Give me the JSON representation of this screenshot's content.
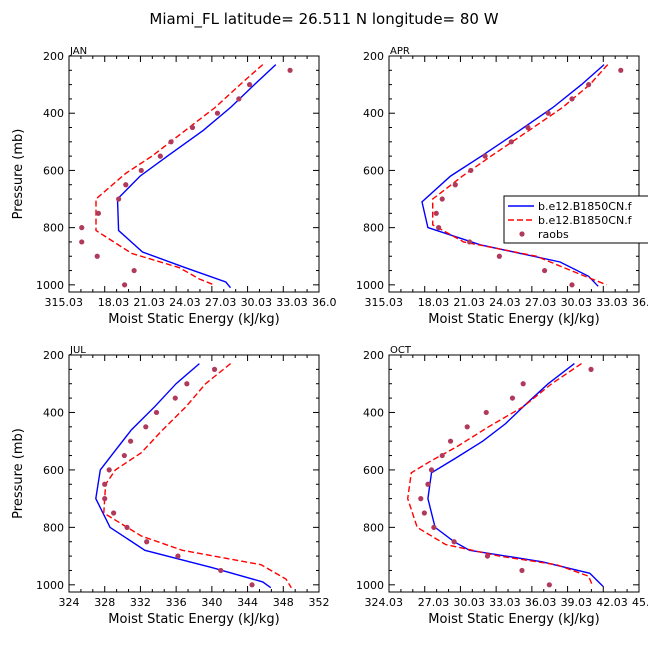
{
  "figure": {
    "title": "Miami_FL  latitude= 26.511 N longitude= 80 W"
  },
  "style": {
    "model1_color": "#0000ff",
    "model2_color": "#ff0000",
    "raobs_color": "#b03a5b"
  },
  "legend": {
    "panel_index": 1,
    "entries": [
      {
        "label": "b.e12.B1850CN.f",
        "style": "solid-line",
        "color": "#0000ff"
      },
      {
        "label": "b.e12.B1850CN.f",
        "style": "dashed-line",
        "color": "#ff0000"
      },
      {
        "label": "raobs",
        "style": "dot",
        "color": "#b03a5b"
      }
    ]
  },
  "chart_data": [
    {
      "type": "line",
      "title": "JAN",
      "xlabel": "Moist Static Energy (kJ/kg)",
      "ylabel": "Pressure (mb)",
      "xlim": [
        315.03,
        336.03
      ],
      "ylim": [
        200,
        1025
      ],
      "y_inverted": true,
      "xticks": [
        315.03,
        318.03,
        321.03,
        324.03,
        327.03,
        330.03,
        333.03,
        336.03
      ],
      "xtick_labels": [
        "315.03",
        "18.03",
        "21.03",
        "24.03",
        "27.03",
        "30.03",
        "33.03",
        "36.0"
      ],
      "yticks": [
        200,
        400,
        600,
        800,
        1000
      ],
      "ytick_labels": [
        "200",
        "400",
        "600",
        "800",
        "1000"
      ],
      "series": [
        {
          "key": "model1",
          "style": "solid",
          "points": [
            [
              332.4,
              230
            ],
            [
              330.6,
              300
            ],
            [
              328.6,
              380
            ],
            [
              326.3,
              460
            ],
            [
              323.3,
              550
            ],
            [
              321.0,
              620
            ],
            [
              319.1,
              700
            ],
            [
              319.2,
              810
            ],
            [
              321.2,
              885
            ],
            [
              324.8,
              940
            ],
            [
              328.2,
              990
            ],
            [
              328.6,
              1010
            ]
          ]
        },
        {
          "key": "model2",
          "style": "dashed",
          "points": [
            [
              331.3,
              230
            ],
            [
              329.4,
              300
            ],
            [
              327.3,
              380
            ],
            [
              324.8,
              460
            ],
            [
              322.0,
              550
            ],
            [
              319.8,
              610
            ],
            [
              317.3,
              700
            ],
            [
              317.3,
              810
            ],
            [
              320.3,
              890
            ],
            [
              324.3,
              940
            ],
            [
              326.0,
              980
            ],
            [
              327.2,
              1000
            ]
          ]
        },
        {
          "key": "raobs",
          "style": "dots",
          "points": [
            [
              333.6,
              250
            ],
            [
              330.2,
              300
            ],
            [
              329.3,
              350
            ],
            [
              327.5,
              400
            ],
            [
              325.4,
              450
            ],
            [
              323.6,
              500
            ],
            [
              322.7,
              550
            ],
            [
              321.1,
              600
            ],
            [
              319.8,
              650
            ],
            [
              319.2,
              700
            ],
            [
              317.5,
              750
            ],
            [
              316.1,
              800
            ],
            [
              316.1,
              850
            ],
            [
              317.4,
              900
            ],
            [
              320.5,
              950
            ],
            [
              319.7,
              1000
            ]
          ]
        }
      ]
    },
    {
      "type": "line",
      "title": "APR",
      "xlabel": "Moist Static Energy (kJ/kg)",
      "ylabel": "",
      "xlim": [
        315.03,
        336.03
      ],
      "ylim": [
        200,
        1025
      ],
      "y_inverted": true,
      "xticks": [
        315.03,
        318.03,
        321.03,
        324.03,
        327.03,
        330.03,
        333.03,
        336.03
      ],
      "xtick_labels": [
        "315.03",
        "18.03",
        "21.03",
        "24.03",
        "27.03",
        "30.03",
        "33.03",
        "36.0"
      ],
      "yticks": [
        200,
        400,
        600,
        800,
        1000
      ],
      "ytick_labels": [
        "200",
        "400",
        "600",
        "800",
        "1000"
      ],
      "series": [
        {
          "key": "model1",
          "style": "solid",
          "points": [
            [
              333.1,
              230
            ],
            [
              331.2,
              300
            ],
            [
              328.8,
              380
            ],
            [
              326.0,
              460
            ],
            [
              322.8,
              550
            ],
            [
              320.2,
              620
            ],
            [
              317.8,
              710
            ],
            [
              318.3,
              800
            ],
            [
              322.7,
              860
            ],
            [
              329.4,
              920
            ],
            [
              331.8,
              970
            ],
            [
              332.6,
              1005
            ]
          ]
        },
        {
          "key": "model2",
          "style": "dashed",
          "points": [
            [
              333.4,
              230
            ],
            [
              331.9,
              300
            ],
            [
              329.6,
              380
            ],
            [
              326.8,
              460
            ],
            [
              323.6,
              550
            ],
            [
              321.2,
              620
            ],
            [
              318.7,
              700
            ],
            [
              318.7,
              790
            ],
            [
              321.3,
              850
            ],
            [
              327.4,
              900
            ],
            [
              330.3,
              950
            ],
            [
              333.3,
              1000
            ]
          ]
        },
        {
          "key": "raobs",
          "style": "dots",
          "points": [
            [
              334.5,
              250
            ],
            [
              331.8,
              300
            ],
            [
              330.4,
              350
            ],
            [
              328.4,
              400
            ],
            [
              326.7,
              450
            ],
            [
              325.3,
              500
            ],
            [
              323.1,
              550
            ],
            [
              321.9,
              600
            ],
            [
              320.6,
              650
            ],
            [
              319.5,
              700
            ],
            [
              319.0,
              750
            ],
            [
              319.2,
              800
            ],
            [
              321.8,
              850
            ],
            [
              324.3,
              900
            ],
            [
              328.1,
              950
            ],
            [
              330.4,
              1000
            ]
          ]
        }
      ]
    },
    {
      "type": "line",
      "title": "JUL",
      "xlabel": "Moist Static Energy (kJ/kg)",
      "ylabel": "Pressure (mb)",
      "xlim": [
        324,
        352
      ],
      "ylim": [
        200,
        1025
      ],
      "y_inverted": true,
      "xticks": [
        324,
        328,
        332,
        336,
        340,
        344,
        348,
        352
      ],
      "xtick_labels": [
        "324",
        "328",
        "332",
        "336",
        "340",
        "344",
        "348",
        "352"
      ],
      "yticks": [
        200,
        400,
        600,
        800,
        1000
      ],
      "ytick_labels": [
        "200",
        "400",
        "600",
        "800",
        "1000"
      ],
      "series": [
        {
          "key": "model1",
          "style": "solid",
          "points": [
            [
              338.6,
              230
            ],
            [
              336.0,
              300
            ],
            [
              333.6,
              380
            ],
            [
              331.0,
              460
            ],
            [
              329.0,
              540
            ],
            [
              327.5,
              600
            ],
            [
              327.0,
              700
            ],
            [
              328.6,
              800
            ],
            [
              332.5,
              880
            ],
            [
              340.0,
              940
            ],
            [
              345.7,
              990
            ],
            [
              346.6,
              1010
            ]
          ]
        },
        {
          "key": "model2",
          "style": "dashed",
          "points": [
            [
              342.1,
              230
            ],
            [
              339.3,
              300
            ],
            [
              337.1,
              380
            ],
            [
              334.5,
              460
            ],
            [
              332.1,
              540
            ],
            [
              329.2,
              600
            ],
            [
              328.1,
              650
            ],
            [
              327.9,
              750
            ],
            [
              332.1,
              830
            ],
            [
              336.7,
              880
            ],
            [
              345.5,
              930
            ],
            [
              348.3,
              980
            ],
            [
              348.9,
              1010
            ]
          ]
        },
        {
          "key": "raobs",
          "style": "dots",
          "points": [
            [
              340.3,
              250
            ],
            [
              337.2,
              300
            ],
            [
              335.9,
              350
            ],
            [
              333.8,
              400
            ],
            [
              332.6,
              450
            ],
            [
              330.9,
              500
            ],
            [
              330.2,
              550
            ],
            [
              328.5,
              600
            ],
            [
              328.0,
              650
            ],
            [
              328.0,
              700
            ],
            [
              329.0,
              750
            ],
            [
              330.5,
              800
            ],
            [
              332.7,
              850
            ],
            [
              336.2,
              900
            ],
            [
              341.0,
              950
            ],
            [
              344.5,
              1000
            ]
          ]
        }
      ]
    },
    {
      "type": "line",
      "title": "OCT",
      "xlabel": "Moist Static Energy (kJ/kg)",
      "ylabel": "",
      "xlim": [
        324.03,
        345.03
      ],
      "ylim": [
        200,
        1025
      ],
      "y_inverted": true,
      "xticks": [
        324.03,
        327.03,
        330.03,
        333.03,
        336.03,
        339.03,
        342.03,
        345.03
      ],
      "xtick_labels": [
        "324.03",
        "27.03",
        "30.03",
        "33.03",
        "36.03",
        "39.03",
        "42.03",
        "45.0"
      ],
      "yticks": [
        200,
        400,
        600,
        800,
        1000
      ],
      "ytick_labels": [
        "200",
        "400",
        "600",
        "800",
        "1000"
      ],
      "series": [
        {
          "key": "model1",
          "style": "solid",
          "points": [
            [
              339.6,
              230
            ],
            [
              337.4,
              300
            ],
            [
              335.3,
              380
            ],
            [
              333.8,
              440
            ],
            [
              331.9,
              500
            ],
            [
              329.6,
              560
            ],
            [
              327.6,
              610
            ],
            [
              327.3,
              700
            ],
            [
              327.9,
              800
            ],
            [
              329.5,
              850
            ],
            [
              330.8,
              880
            ],
            [
              336.9,
              920
            ],
            [
              340.9,
              960
            ],
            [
              342.0,
              1005
            ]
          ]
        },
        {
          "key": "model2",
          "style": "dashed",
          "points": [
            [
              340.2,
              230
            ],
            [
              337.7,
              300
            ],
            [
              335.3,
              380
            ],
            [
              332.4,
              450
            ],
            [
              329.7,
              520
            ],
            [
              327.5,
              570
            ],
            [
              325.9,
              610
            ],
            [
              325.6,
              700
            ],
            [
              326.4,
              800
            ],
            [
              328.8,
              860
            ],
            [
              333.3,
              900
            ],
            [
              338.1,
              930
            ],
            [
              340.8,
              970
            ],
            [
              341.1,
              1000
            ]
          ]
        },
        {
          "key": "raobs",
          "style": "dots",
          "points": [
            [
              341.0,
              250
            ],
            [
              335.3,
              300
            ],
            [
              334.4,
              350
            ],
            [
              332.2,
              400
            ],
            [
              330.6,
              450
            ],
            [
              329.2,
              500
            ],
            [
              328.5,
              550
            ],
            [
              327.6,
              600
            ],
            [
              327.3,
              650
            ],
            [
              326.7,
              700
            ],
            [
              327.0,
              750
            ],
            [
              327.8,
              800
            ],
            [
              329.5,
              850
            ],
            [
              332.3,
              900
            ],
            [
              335.2,
              950
            ],
            [
              337.5,
              1000
            ]
          ]
        }
      ]
    }
  ]
}
